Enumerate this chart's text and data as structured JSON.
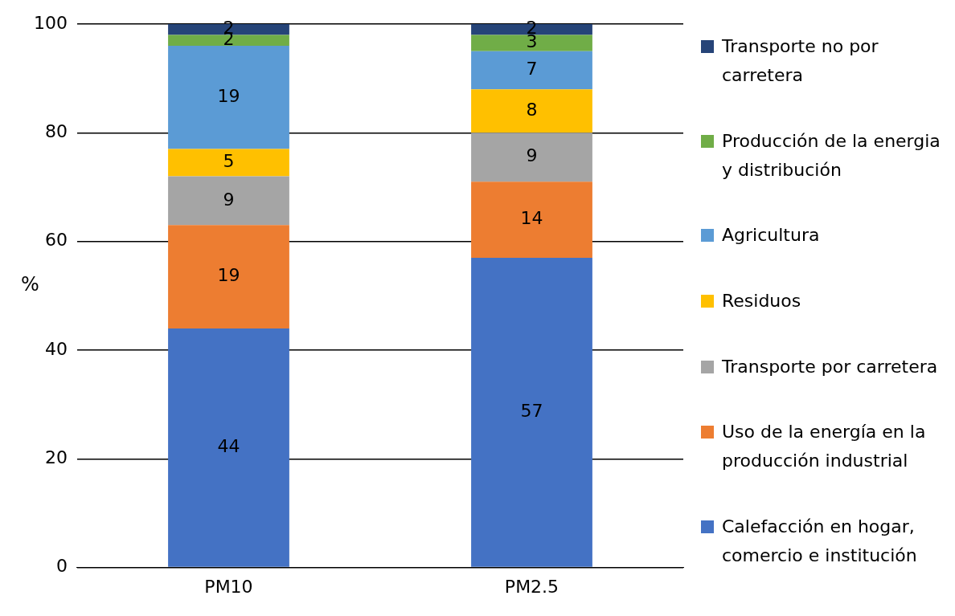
{
  "chart_data": {
    "type": "bar",
    "stacked": true,
    "ylabel": "%",
    "categories": [
      "PM10",
      "PM2.5"
    ],
    "series": [
      {
        "name": "Calefacción en hogar, comercio e institución",
        "color": "#4472c4",
        "values": [
          44,
          57
        ]
      },
      {
        "name": "Uso de la energía en la producción industrial",
        "color": "#ed7d31",
        "values": [
          19,
          14
        ]
      },
      {
        "name": "Transporte por carretera",
        "color": "#a5a5a5",
        "values": [
          9,
          9
        ]
      },
      {
        "name": "Residuos",
        "color": "#ffc000",
        "values": [
          5,
          8
        ]
      },
      {
        "name": "Agricultura",
        "color": "#5b9bd5",
        "values": [
          19,
          7
        ]
      },
      {
        "name": "Producción de la energia y distribución",
        "color": "#70ad47",
        "values": [
          2,
          3
        ]
      },
      {
        "name": "Transporte no por carretera",
        "color": "#264478",
        "values": [
          2,
          2
        ]
      }
    ],
    "ylim": [
      0,
      100
    ],
    "yticks": [
      0,
      20,
      40,
      60,
      80,
      100
    ],
    "grid": "y",
    "legend": "right",
    "data_labels": true
  }
}
